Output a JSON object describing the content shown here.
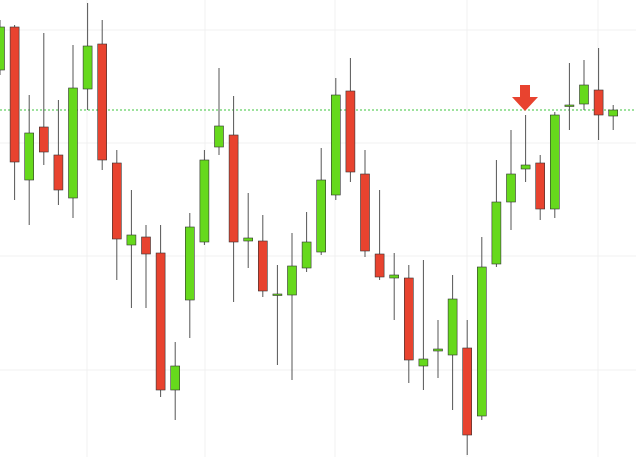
{
  "chart_data": {
    "type": "candlestick",
    "open": [
      387,
      430,
      277,
      330,
      302,
      259,
      368,
      413,
      294,
      212,
      220,
      204,
      67,
      157,
      215,
      310,
      322,
      216,
      216,
      162,
      162,
      189,
      205,
      262,
      366,
      283,
      203,
      179,
      179,
      91,
      106,
      102,
      109,
      41,
      193,
      255,
      288,
      294,
      248,
      351,
      353,
      367,
      341
    ],
    "high": [
      437,
      432,
      362,
      424,
      357,
      412,
      454,
      437,
      307,
      267,
      232,
      232,
      115,
      244,
      307,
      389,
      361,
      264,
      242,
      192,
      224,
      245,
      309,
      379,
      399,
      307,
      267,
      204,
      192,
      197,
      137,
      182,
      137,
      220,
      297,
      327,
      342,
      302,
      345,
      394,
      397,
      409,
      352
    ],
    "low": [
      382,
      257,
      232,
      292,
      252,
      239,
      347,
      287,
      177,
      149,
      149,
      60,
      37,
      119,
      212,
      302,
      155,
      189,
      160,
      92,
      77,
      185,
      202,
      257,
      275,
      200,
      177,
      137,
      74,
      67,
      79,
      47,
      2,
      37,
      190,
      227,
      275,
      237,
      239,
      327,
      347,
      317,
      327
    ],
    "close": [
      430,
      295,
      324,
      305,
      267,
      369,
      411,
      297,
      218,
      222,
      203,
      67,
      91,
      230,
      297,
      331,
      215,
      219,
      166,
      163,
      191,
      215,
      277,
      362,
      285,
      206,
      180,
      182,
      97,
      98,
      108,
      158,
      22,
      190,
      255,
      283,
      292,
      248,
      342,
      352,
      372,
      342,
      347
    ],
    "up_color": "#66d91c",
    "down_color": "#e8432f",
    "reference_line": {
      "value": 347,
      "color": "#3cc43c"
    },
    "ylim": [
      0,
      457
    ],
    "yticks": [
      87,
      201,
      314,
      427
    ],
    "grid": true
  }
}
